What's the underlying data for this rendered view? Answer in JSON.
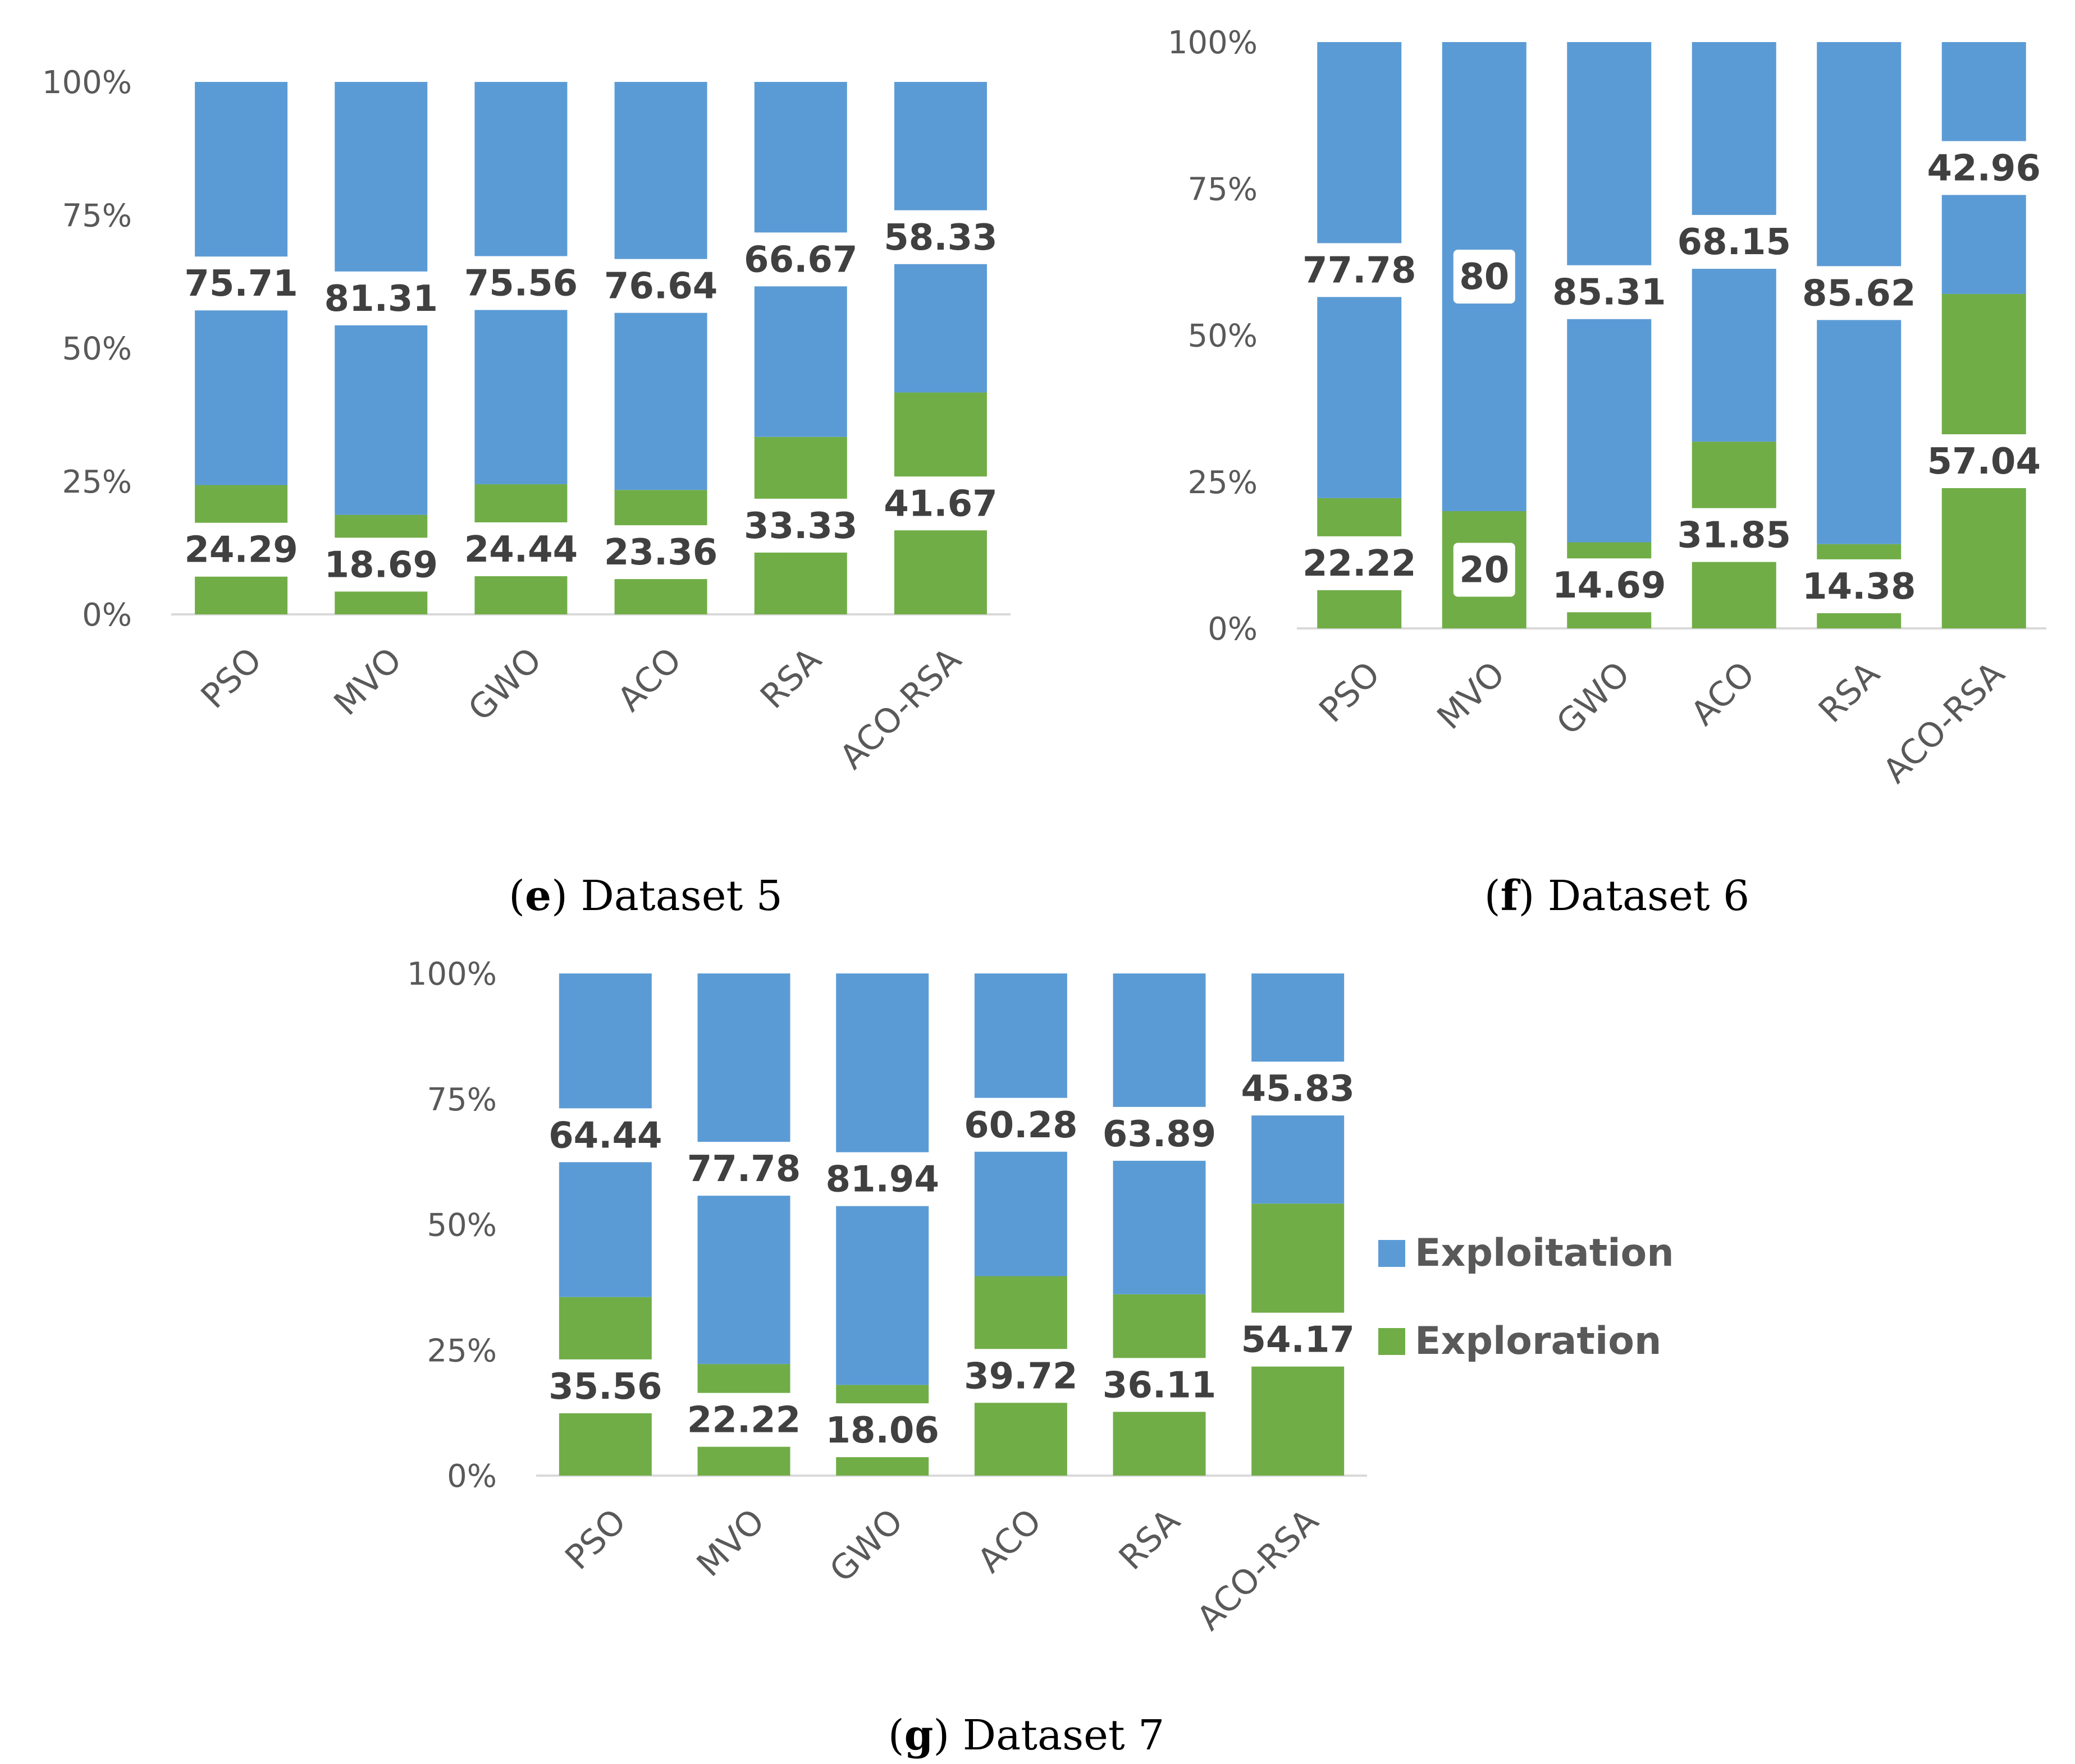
{
  "colors": {
    "exploitation": "#5b9bd5",
    "exploration": "#70ad47",
    "axis": "#d9d9d9",
    "text": "#595959",
    "label": "#404040"
  },
  "legend": {
    "exploitation": "Exploitation",
    "exploration": "Exploration"
  },
  "chart_data": [
    {
      "type": "bar",
      "stacked": true,
      "title": "",
      "caption": {
        "letter": "e",
        "text": "Dataset 5"
      },
      "categories": [
        "PSO",
        "MVO",
        "GWO",
        "ACO",
        "RSA",
        "ACO-RSA"
      ],
      "yticks": [
        "0%",
        "25%",
        "50%",
        "75%",
        "100%"
      ],
      "ylim": [
        0,
        100
      ],
      "series": [
        {
          "name": "Exploration",
          "values": [
            24.29,
            18.69,
            24.44,
            23.36,
            33.33,
            41.67
          ]
        },
        {
          "name": "Exploitation",
          "values": [
            75.71,
            81.31,
            75.56,
            76.64,
            66.67,
            58.33
          ]
        }
      ],
      "data_labels": {
        "Exploration": [
          "24.29",
          "18.69",
          "24.44",
          "23.36",
          "33.33",
          "41.67"
        ],
        "Exploitation": [
          "75.71",
          "81.31",
          "75.56",
          "76.64",
          "66.67",
          "58.33"
        ]
      }
    },
    {
      "type": "bar",
      "stacked": true,
      "title": "",
      "caption": {
        "letter": "f",
        "text": "Dataset 6"
      },
      "categories": [
        "PSO",
        "MVO",
        "GWO",
        "ACO",
        "RSA",
        "ACO-RSA"
      ],
      "yticks": [
        "0%",
        "25%",
        "50%",
        "75%",
        "100%"
      ],
      "ylim": [
        0,
        100
      ],
      "series": [
        {
          "name": "Exploration",
          "values": [
            22.22,
            20,
            14.69,
            31.85,
            14.38,
            57.04
          ]
        },
        {
          "name": "Exploitation",
          "values": [
            77.78,
            80,
            85.31,
            68.15,
            85.62,
            42.96
          ]
        }
      ],
      "data_labels": {
        "Exploration": [
          "22.22",
          "20",
          "14.69",
          "31.85",
          "14.38",
          "57.04"
        ],
        "Exploitation": [
          "77.78",
          "80",
          "85.31",
          "68.15",
          "85.62",
          "42.96"
        ]
      }
    },
    {
      "type": "bar",
      "stacked": true,
      "title": "",
      "caption": {
        "letter": "g",
        "text": "Dataset 7"
      },
      "categories": [
        "PSO",
        "MVO",
        "GWO",
        "ACO",
        "RSA",
        "ACO-RSA"
      ],
      "yticks": [
        "0%",
        "25%",
        "50%",
        "75%",
        "100%"
      ],
      "ylim": [
        0,
        100
      ],
      "series": [
        {
          "name": "Exploration",
          "values": [
            35.56,
            22.22,
            18.06,
            39.72,
            36.11,
            54.17
          ]
        },
        {
          "name": "Exploitation",
          "values": [
            64.44,
            77.78,
            81.94,
            60.28,
            63.89,
            45.83
          ]
        }
      ],
      "data_labels": {
        "Exploration": [
          "35.56",
          "22.22",
          "18.06",
          "39.72",
          "36.11",
          "54.17"
        ],
        "Exploitation": [
          "64.44",
          "77.78",
          "81.94",
          "60.28",
          "63.89",
          "45.83"
        ]
      },
      "legend_position": "right"
    }
  ]
}
